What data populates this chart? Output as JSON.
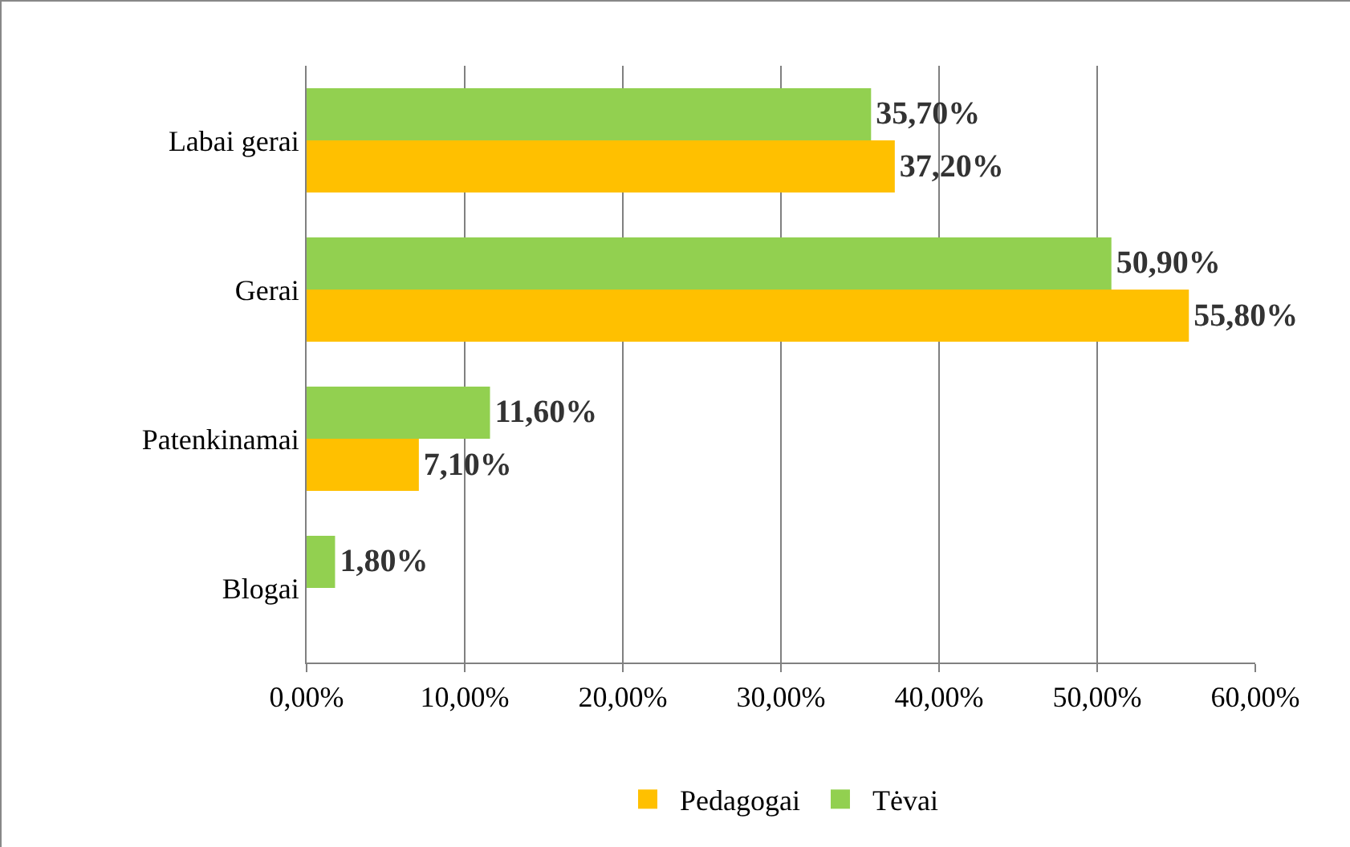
{
  "chart_data": {
    "type": "bar",
    "orientation": "horizontal",
    "categories": [
      "Labai gerai",
      "Gerai",
      "Patenkinamai",
      "Blogai"
    ],
    "series": [
      {
        "name": "Pedagogai",
        "color": "#ffc000",
        "values": [
          37.2,
          55.8,
          7.1,
          null
        ],
        "value_labels": [
          "37,20%",
          "55,80%",
          "7,10%",
          null
        ]
      },
      {
        "name": "Tėvai",
        "color": "#92d050",
        "values": [
          35.7,
          50.9,
          11.6,
          1.8
        ],
        "value_labels": [
          "35,70%",
          "50,90%",
          "11,60%",
          "1,80%"
        ]
      }
    ],
    "xlim": [
      0,
      60
    ],
    "xticks": [
      {
        "value": 0,
        "label": "0,00%"
      },
      {
        "value": 10,
        "label": "10,00%"
      },
      {
        "value": 20,
        "label": "20,00%"
      },
      {
        "value": 30,
        "label": "30,00%"
      },
      {
        "value": 40,
        "label": "40,00%"
      },
      {
        "value": 50,
        "label": "50,00%"
      },
      {
        "value": 60,
        "label": "60,00%"
      }
    ],
    "grid": "x",
    "legend": "bottom"
  }
}
